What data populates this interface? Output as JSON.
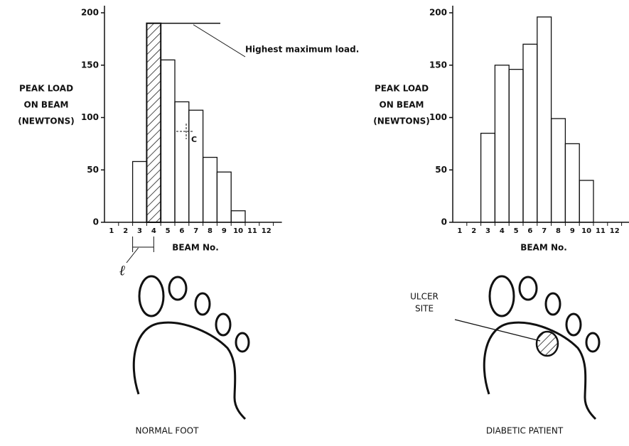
{
  "chart_data": [
    {
      "type": "bar",
      "categories": [
        "1",
        "2",
        "3",
        "4",
        "5",
        "6",
        "7",
        "8",
        "9",
        "10",
        "11",
        "12"
      ],
      "values": [
        0,
        0,
        58,
        190,
        155,
        115,
        107,
        62,
        48,
        11,
        0,
        0
      ],
      "hatched_index": 3,
      "ylim": [
        0,
        200
      ],
      "yticks": [
        0,
        50,
        100,
        150,
        200
      ],
      "xlabel": "BEAM No.",
      "ylabel_lines": [
        "PEAK LOAD",
        "ON BEAM",
        "(NEWTONS)"
      ],
      "annotations": [
        "Highest maximum load.",
        "C",
        "ℓ"
      ],
      "caption": "NORMAL FOOT"
    },
    {
      "type": "bar",
      "categories": [
        "1",
        "2",
        "3",
        "4",
        "5",
        "6",
        "7",
        "8",
        "9",
        "10",
        "11",
        "12"
      ],
      "values": [
        0,
        0,
        85,
        150,
        146,
        170,
        196,
        99,
        75,
        40,
        0,
        0
      ],
      "ylim": [
        0,
        200
      ],
      "yticks": [
        0,
        50,
        100,
        150,
        200
      ],
      "xlabel": "BEAM No.",
      "ylabel_lines": [
        "PEAK LOAD",
        "ON BEAM",
        "(NEWTONS)"
      ],
      "annotations": [
        "ULCER",
        "SITE"
      ],
      "caption": "DIABETIC PATIENT"
    }
  ]
}
